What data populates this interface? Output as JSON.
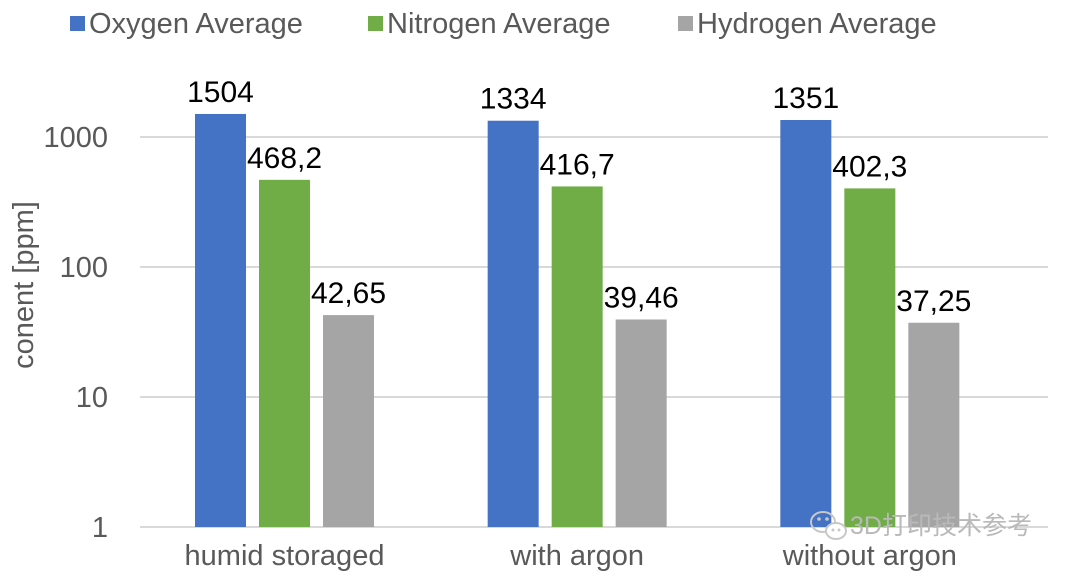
{
  "chart_data": {
    "type": "bar",
    "title": "",
    "xlabel": "",
    "ylabel": "conent [ppm]",
    "yscale": "log",
    "ylim": [
      1,
      3000
    ],
    "yticks": [
      1,
      10,
      100,
      1000
    ],
    "ytick_labels": [
      "1",
      "10",
      "100",
      "1000"
    ],
    "grid": true,
    "legend_position": "top",
    "categories": [
      "humid storaged",
      "with argon",
      "without argon"
    ],
    "series": [
      {
        "name": "Oxygen Average",
        "color": "#4472c4",
        "values": [
          1504,
          1334,
          1351
        ],
        "labels": [
          "1504",
          "1334",
          "1351"
        ]
      },
      {
        "name": "Nitrogen Average",
        "color": "#70ad47",
        "values": [
          468.2,
          416.7,
          402.3
        ],
        "labels": [
          "468,2",
          "416,7",
          "402,3"
        ]
      },
      {
        "name": "Hydrogen Average",
        "color": "#a5a5a5",
        "values": [
          42.65,
          39.46,
          37.25
        ],
        "labels": [
          "42,65",
          "39,46",
          "37,25"
        ]
      }
    ]
  },
  "watermark": {
    "icon": "wechat-icon",
    "text": "3D打印技术参考"
  }
}
